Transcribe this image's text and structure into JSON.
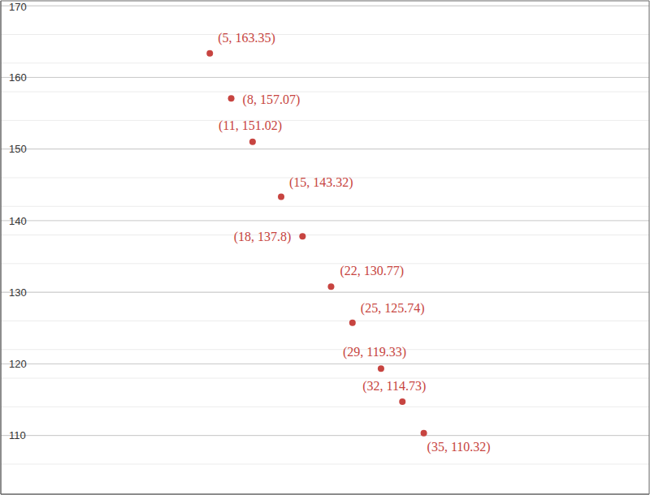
{
  "chart_data": {
    "type": "scatter",
    "x": [
      5,
      8,
      11,
      15,
      18,
      22,
      25,
      29,
      32,
      35
    ],
    "values": [
      163.35,
      157.07,
      151.02,
      143.32,
      137.8,
      130.77,
      125.74,
      119.33,
      114.73,
      110.32
    ],
    "value_labels": [
      "(5, 163.35)",
      "(8, 157.07)",
      "(11, 151.02)",
      "(15, 143.32)",
      "(18, 137.8)",
      "(22, 130.77)",
      "(25, 125.74)",
      "(29, 119.33)",
      "(32, 114.73)",
      "(35, 110.32)"
    ],
    "data_labels": true,
    "color": "#c74440",
    "marker": "circle",
    "xlim": [
      -24.3,
      66.6
    ],
    "xticks": [
      -20,
      -10,
      0,
      10,
      20,
      30,
      40,
      50,
      60
    ],
    "ylim": [
      101.8,
      170.7
    ],
    "yticks": [
      110,
      120,
      130,
      140,
      150,
      160,
      170
    ],
    "grid": true,
    "tick_labels": "y"
  }
}
